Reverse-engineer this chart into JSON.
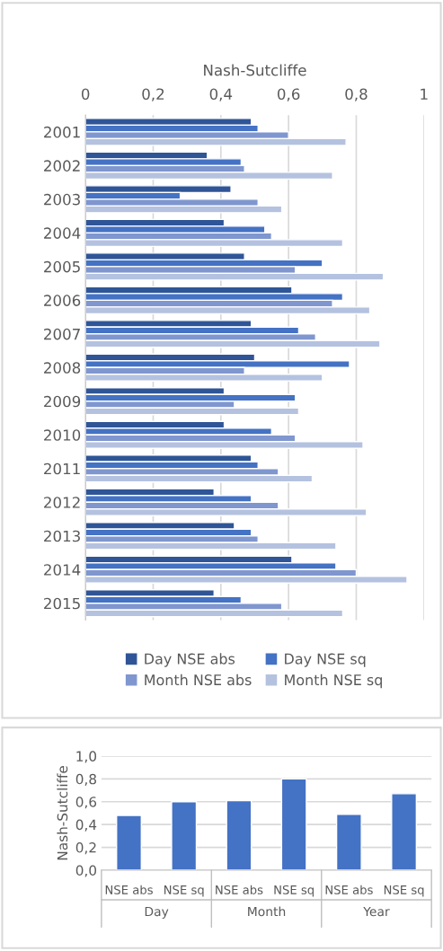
{
  "chart_data": [
    {
      "type": "bar",
      "orientation": "horizontal",
      "xlabel": "Nash-Sutcliffe",
      "categories": [
        "2001",
        "2002",
        "2003",
        "2004",
        "2005",
        "2006",
        "2007",
        "2008",
        "2009",
        "2010",
        "2011",
        "2012",
        "2013",
        "2014",
        "2015"
      ],
      "series": [
        {
          "name": "Day NSE abs",
          "color": "#2f5597",
          "values": [
            0.49,
            0.36,
            0.43,
            0.41,
            0.47,
            0.61,
            0.49,
            0.5,
            0.41,
            0.41,
            0.49,
            0.38,
            0.44,
            0.61,
            0.38
          ]
        },
        {
          "name": "Day NSE sq",
          "color": "#4472c4",
          "values": [
            0.51,
            0.46,
            0.28,
            0.53,
            0.7,
            0.76,
            0.63,
            0.78,
            0.62,
            0.55,
            0.51,
            0.49,
            0.49,
            0.74,
            0.46
          ]
        },
        {
          "name": "Month NSE abs",
          "color": "#7f96cf",
          "values": [
            0.6,
            0.47,
            0.51,
            0.55,
            0.62,
            0.73,
            0.68,
            0.47,
            0.44,
            0.62,
            0.57,
            0.57,
            0.51,
            0.8,
            0.58
          ]
        },
        {
          "name": "Month NSE sq",
          "color": "#b4c2e0",
          "values": [
            0.77,
            0.73,
            0.58,
            0.76,
            0.88,
            0.84,
            0.87,
            0.7,
            0.63,
            0.82,
            0.67,
            0.83,
            0.74,
            0.95,
            0.76
          ]
        }
      ],
      "xlim": [
        0,
        1
      ],
      "xticks": [
        0,
        {
          "value": 0.2,
          "label": "0,2"
        },
        {
          "value": 0.4,
          "label": "0,4"
        },
        {
          "value": 0.6,
          "label": "0,6"
        },
        {
          "value": 0.8,
          "label": "0,8"
        },
        1
      ],
      "grid": "x",
      "legend": "bottom"
    },
    {
      "type": "bar",
      "ylabel": "Nash-Sutcliffe",
      "categories": [
        "NSE abs",
        "NSE sq",
        "NSE abs",
        "NSE sq",
        "NSE abs",
        "NSE sq"
      ],
      "values": [
        0.48,
        0.6,
        0.61,
        0.8,
        0.49,
        0.67
      ],
      "color": "#4472c4",
      "annotations": [
        "Day",
        "Month",
        "Year"
      ],
      "ylim": [
        0,
        1
      ],
      "yticks": [
        {
          "value": 0,
          "label": "0,0"
        },
        {
          "value": 0.2,
          "label": "0,2"
        },
        {
          "value": 0.4,
          "label": "0,4"
        },
        {
          "value": 0.6,
          "label": "0,6"
        },
        {
          "value": 0.8,
          "label": "0,8"
        },
        {
          "value": 1,
          "label": "1,0"
        }
      ],
      "grid": "y"
    }
  ]
}
